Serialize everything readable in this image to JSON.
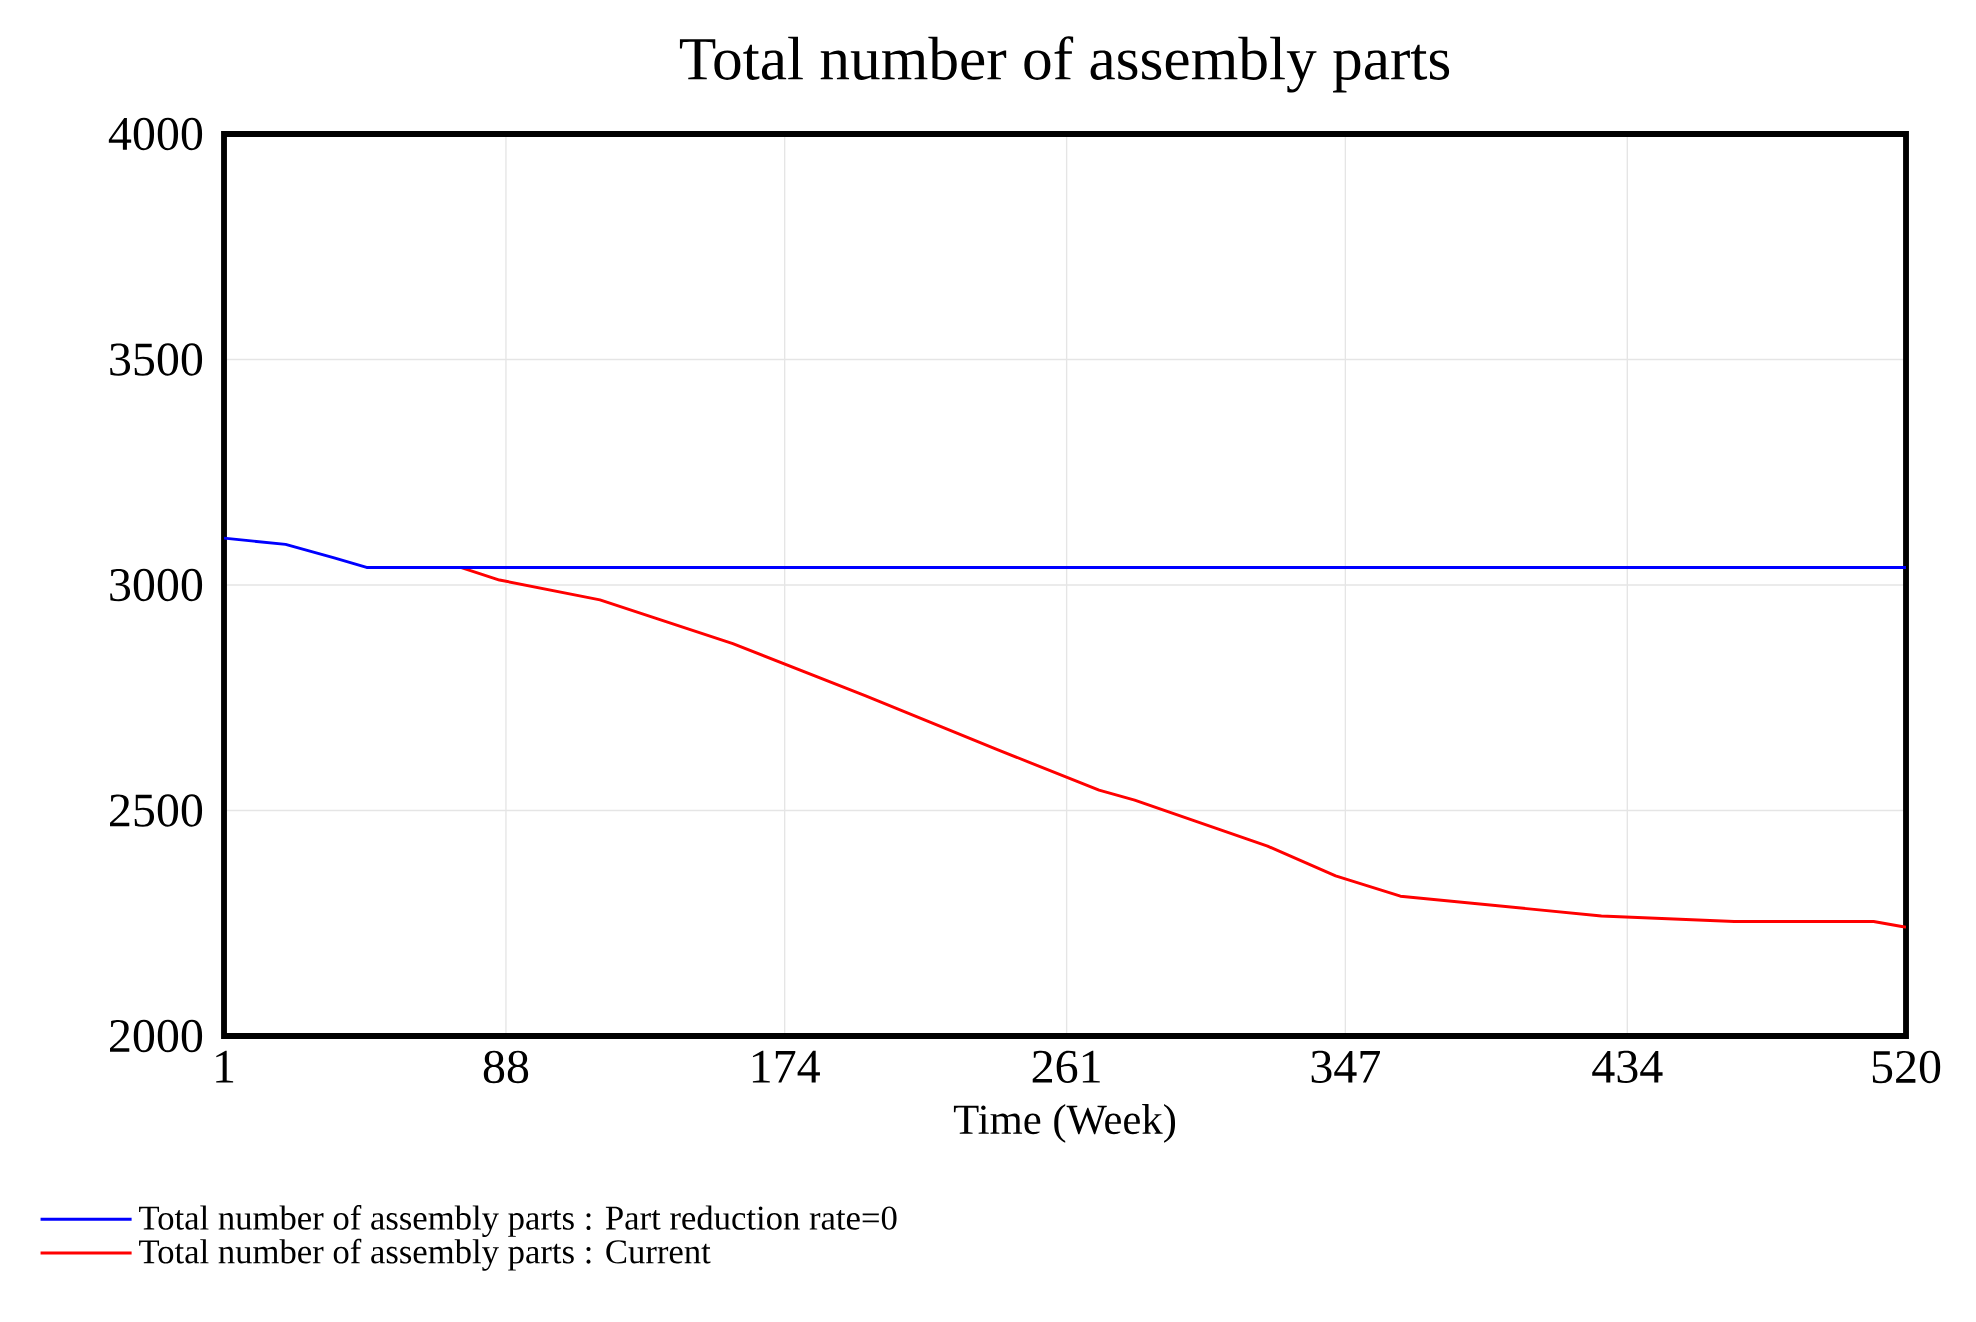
{
  "chart_data": {
    "type": "line",
    "title": "Total number of assembly parts",
    "xlabel": "Time (Week)",
    "xlim": [
      1,
      520
    ],
    "xticks": [
      1,
      88,
      174,
      261,
      347,
      434,
      520
    ],
    "ylim": [
      2000,
      4000
    ],
    "yticks": [
      2000,
      2500,
      3000,
      3500,
      4000
    ],
    "grid": true,
    "legend": "bottom",
    "series": [
      {
        "name": "Total number of assembly parts : Part reduction rate=0",
        "color": "#0000ff",
        "x": [
          1,
          20,
          35,
          45,
          520
        ],
        "values": [
          3104,
          3090,
          3060,
          3039,
          3039
        ]
      },
      {
        "name": "Total number of assembly parts : Current",
        "color": "#ff0000",
        "x": [
          74,
          86,
          117,
          158,
          199,
          240,
          271,
          282,
          323,
          344,
          364,
          395,
          426,
          467,
          510,
          520
        ],
        "values": [
          3039,
          3011,
          2967,
          2870,
          2754,
          2634,
          2545,
          2523,
          2421,
          2355,
          2310,
          2288,
          2266,
          2254,
          2254,
          2241
        ]
      }
    ]
  }
}
